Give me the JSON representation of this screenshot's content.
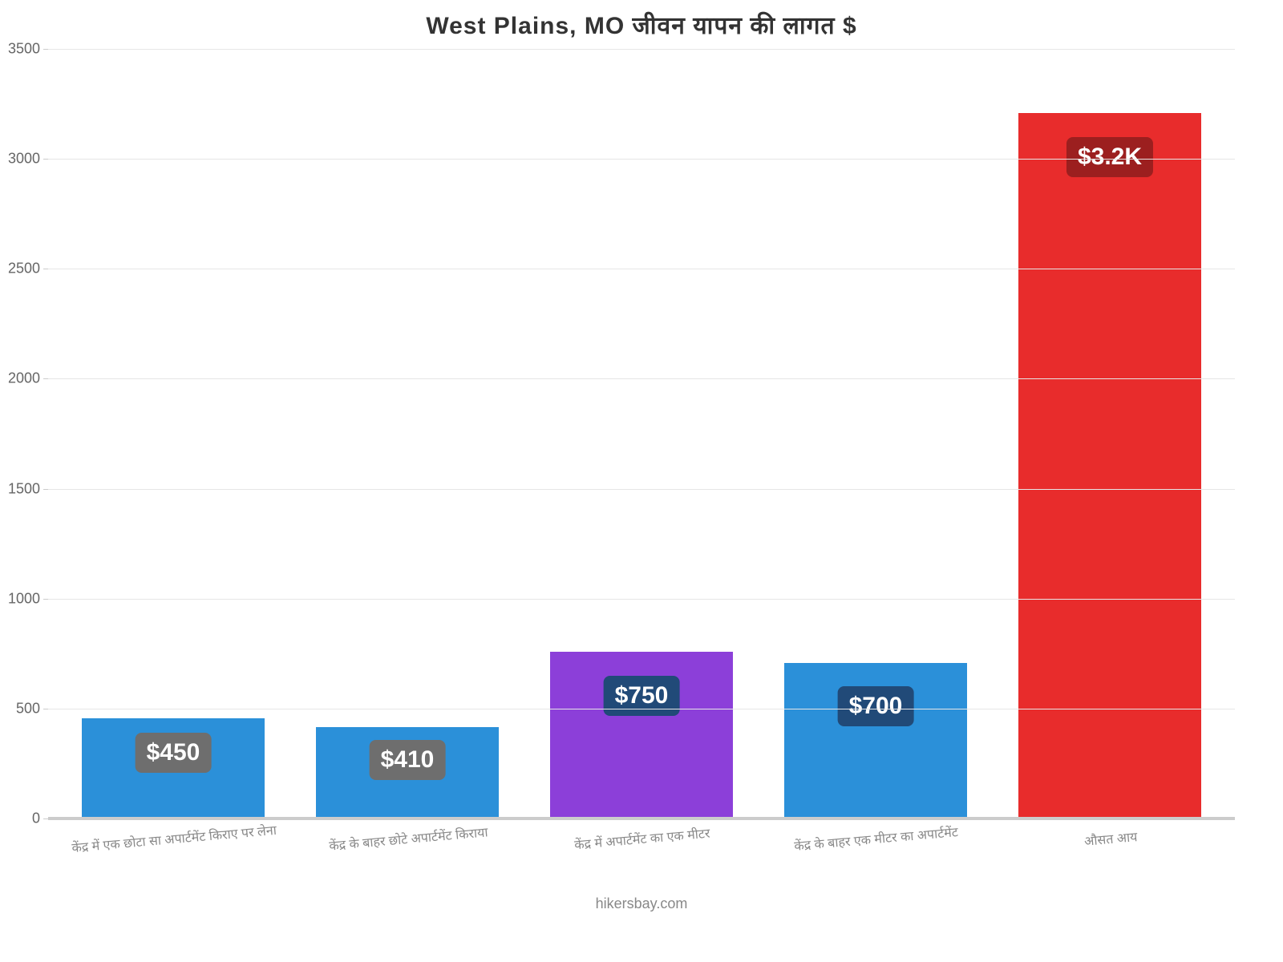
{
  "chart": {
    "type": "bar",
    "title": "West Plains, MO जीवन     यापन     की     लागत     $",
    "title_fontsize": 30,
    "background_color": "#ffffff",
    "grid_color": "#e6e6e6",
    "axis_color": "#cccccc",
    "ylim": [
      0,
      3500
    ],
    "ytick_step": 500,
    "yticks": [
      0,
      500,
      1000,
      1500,
      2000,
      2500,
      3000,
      3500
    ],
    "ytick_fontsize": 18,
    "ytick_color": "#666666",
    "xlabel_fontsize": 16,
    "xlabel_color": "#888888",
    "xlabel_rotate_deg": -5,
    "bar_width": 0.78,
    "value_badge_fontsize": 30,
    "value_badge_text_color": "#ffffff",
    "categories": [
      "केंद्र में एक छोटा सा अपार्टमेंट किराए पर लेना",
      "केंद्र के बाहर छोटे अपार्टमेंट किराया",
      "केंद्र में अपार्टमेंट का एक मीटर",
      "केंद्र के बाहर एक मीटर का अपार्टमेंट",
      "औसत आय"
    ],
    "values": [
      450,
      410,
      750,
      700,
      3200
    ],
    "value_labels": [
      "$450",
      "$410",
      "$750",
      "$700",
      "$3.2K"
    ],
    "bar_colors": [
      "#2b90d9",
      "#2b90d9",
      "#8c3fd9",
      "#2b90d9",
      "#e82c2c"
    ],
    "badge_colors": [
      "#6e6e6e",
      "#6e6e6e",
      "#214a78",
      "#214a78",
      "#9c1f1f"
    ],
    "footer": "hikersbay.com",
    "footer_fontsize": 18,
    "footer_color": "#888888"
  }
}
